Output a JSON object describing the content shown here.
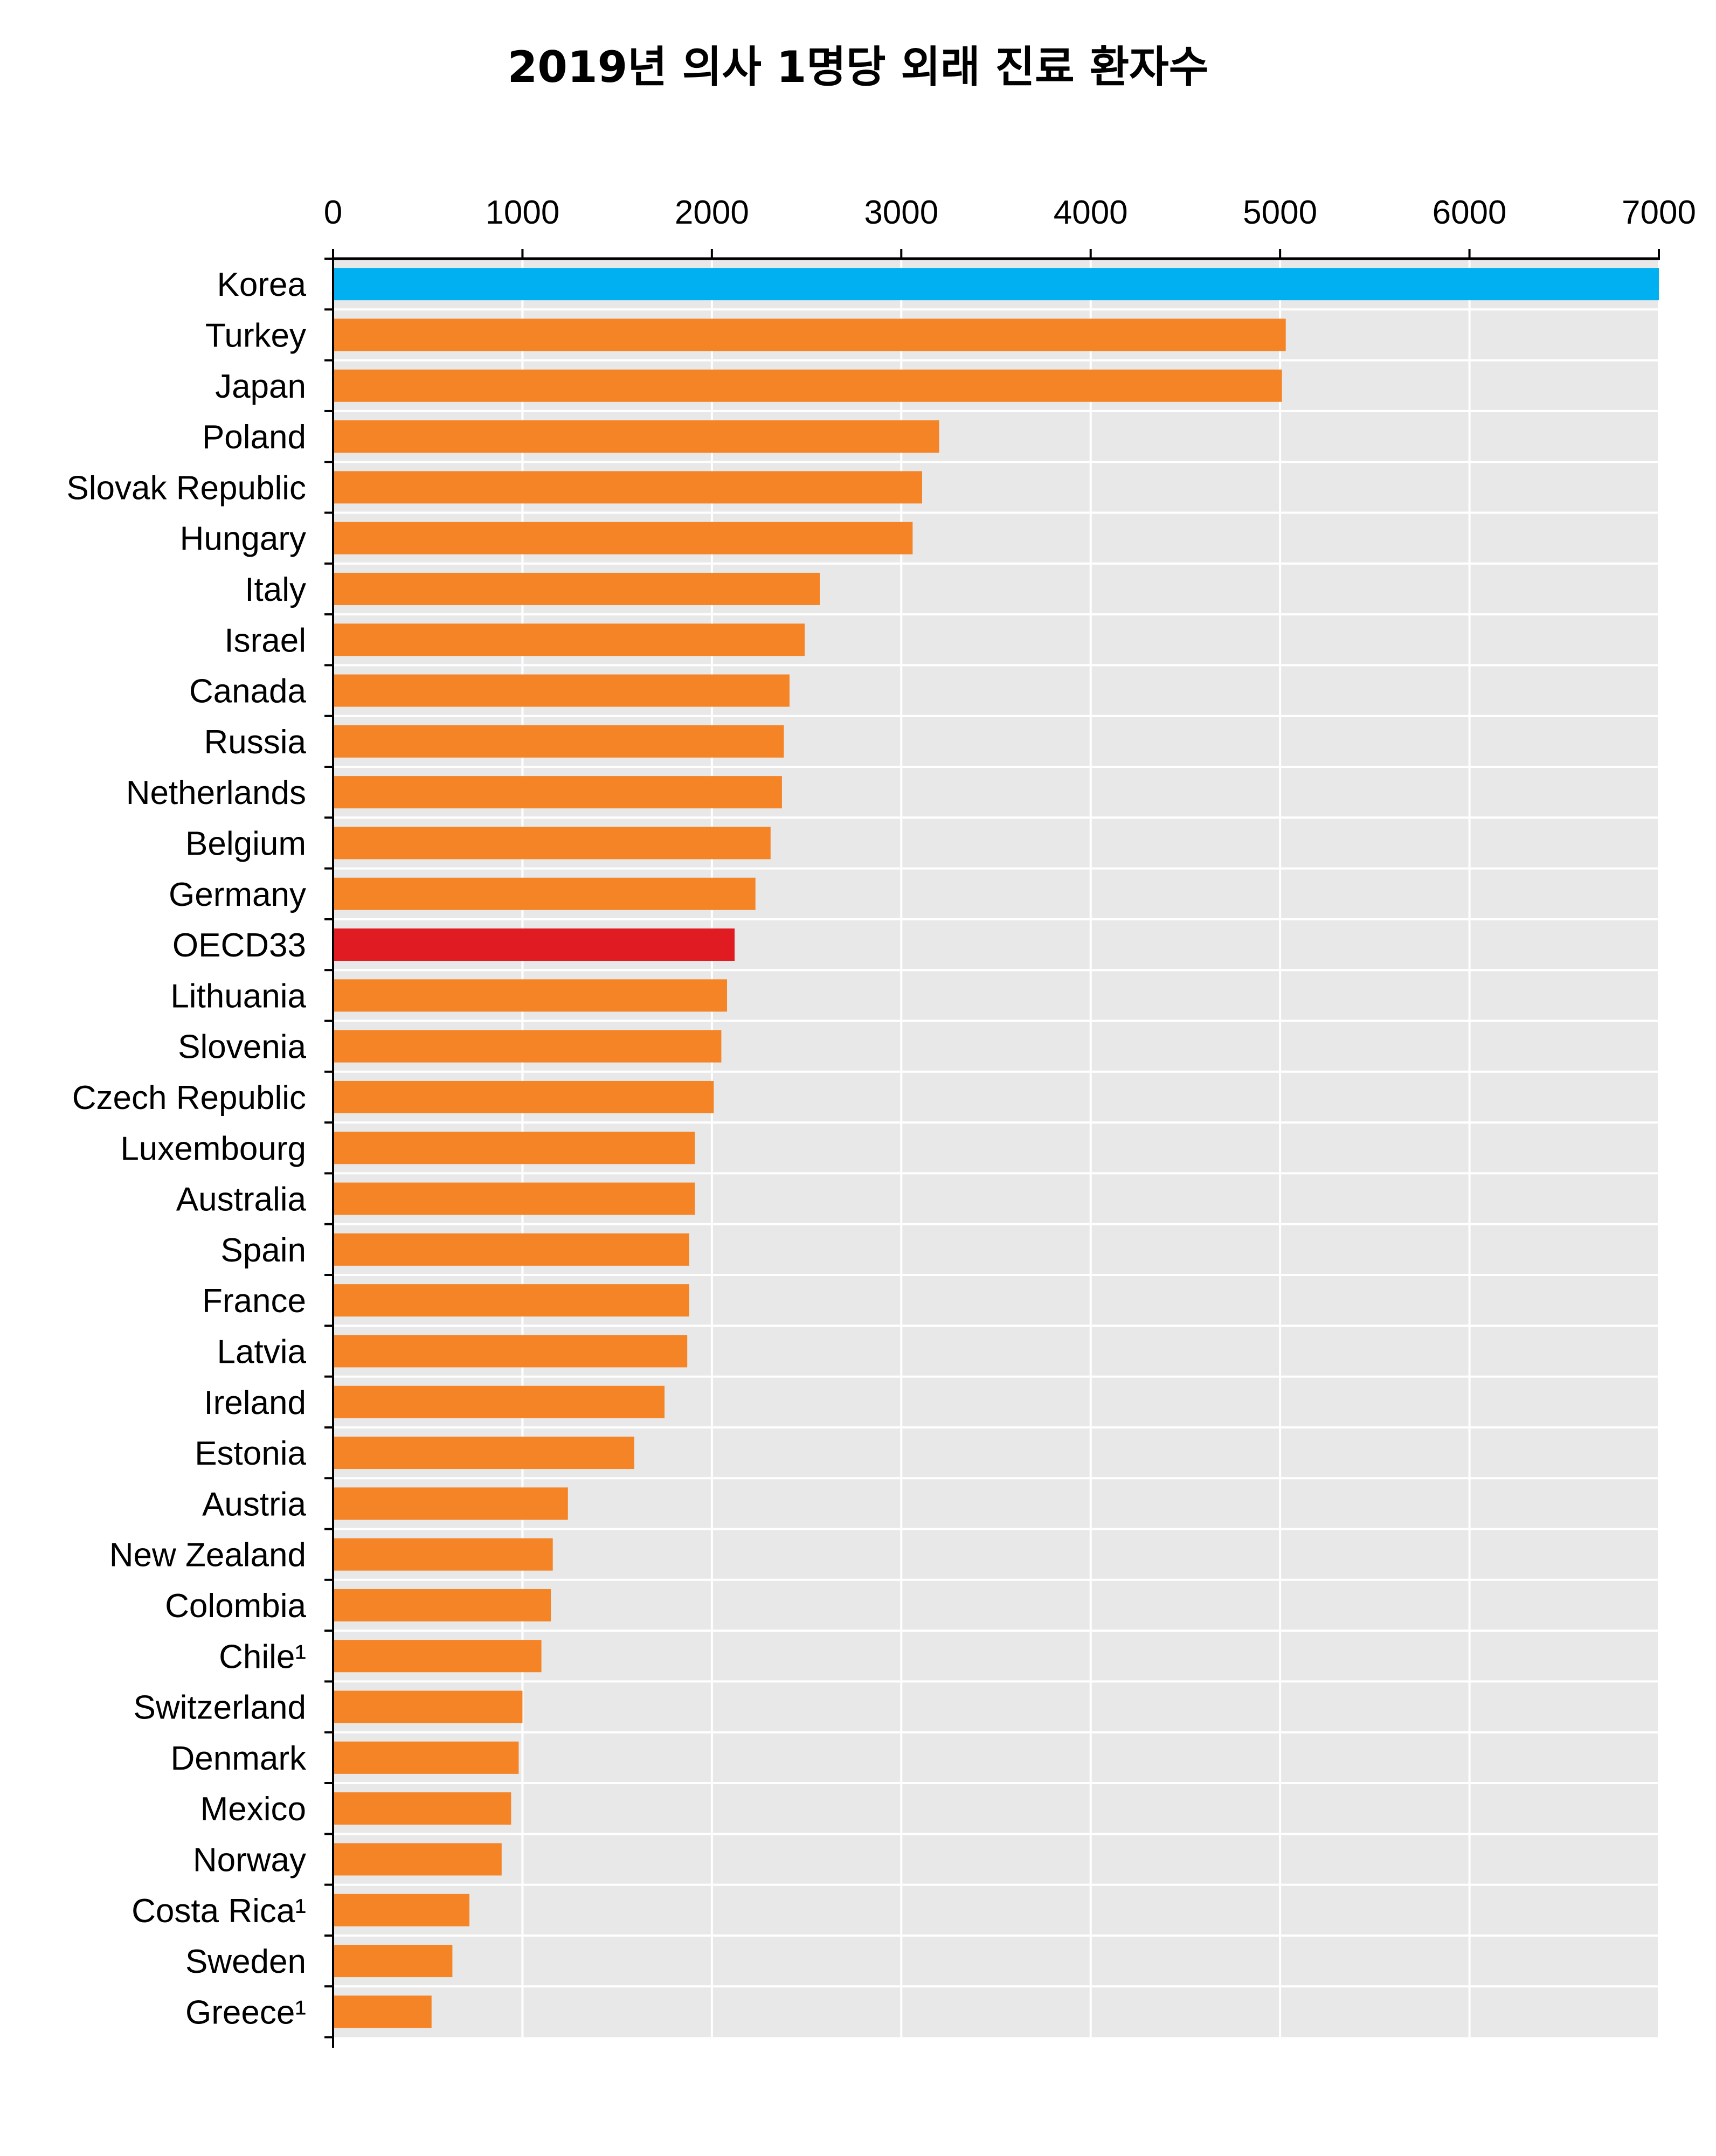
{
  "chart_data": {
    "type": "bar",
    "orientation": "horizontal",
    "title": "2019년 의사 1명당 외래 진료 환자수",
    "xlabel": "",
    "ylabel": "",
    "xlim": [
      0,
      7000
    ],
    "xticks": [
      0,
      1000,
      2000,
      3000,
      4000,
      5000,
      6000,
      7000
    ],
    "xtick_labels": [
      "0",
      "1000",
      "2000",
      "3000",
      "4000",
      "5000",
      "6000",
      "7000"
    ],
    "x_axis_position": "top",
    "grid": true,
    "legend": "none",
    "colors": {
      "default": "#F58426",
      "Korea": "#00B0F0",
      "OECD33": "#E01B22",
      "plot_background": "#E8E8E8",
      "gridline": "#FFFFFF"
    },
    "categories": [
      "Korea",
      "Turkey",
      "Japan",
      "Poland",
      "Slovak Republic",
      "Hungary",
      "Italy",
      "Israel",
      "Canada",
      "Russia",
      "Netherlands",
      "Belgium",
      "Germany",
      "OECD33",
      "Lithuania",
      "Slovenia",
      "Czech Republic",
      "Luxembourg",
      "Australia",
      "Spain",
      "France",
      "Latvia",
      "Ireland",
      "Estonia",
      "Austria",
      "New Zealand",
      "Colombia",
      "Chile¹",
      "Switzerland",
      "Denmark",
      "Mexico",
      "Norway",
      "Costa Rica¹",
      "Sweden",
      "Greece¹"
    ],
    "values": [
      7000,
      5030,
      5010,
      3200,
      3110,
      3060,
      2570,
      2490,
      2410,
      2380,
      2370,
      2310,
      2230,
      2120,
      2080,
      2050,
      2010,
      1910,
      1910,
      1880,
      1880,
      1870,
      1750,
      1590,
      1240,
      1160,
      1150,
      1100,
      1000,
      980,
      940,
      890,
      720,
      630,
      520
    ]
  }
}
